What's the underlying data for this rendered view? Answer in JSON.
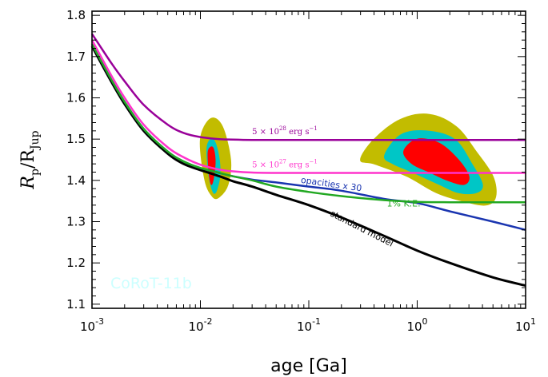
{
  "chart_data": {
    "type": "line",
    "title": "",
    "xlabel": "age [Ga]",
    "ylabel_main": "R",
    "ylabel_sub": "p",
    "ylabel_mid": "/R",
    "ylabel_sub2": "Jup",
    "xscale": "log",
    "xlim": [
      0.001,
      10
    ],
    "ylim": [
      1.09,
      1.81
    ],
    "x_tick_labels": [
      {
        "x": 0.001,
        "base": "10",
        "exp": "-3"
      },
      {
        "x": 0.01,
        "base": "10",
        "exp": "-2"
      },
      {
        "x": 0.1,
        "base": "10",
        "exp": "-1"
      },
      {
        "x": 1,
        "base": "10",
        "exp": "0"
      },
      {
        "x": 10,
        "base": "10",
        "exp": "1"
      }
    ],
    "y_ticks": [
      1.1,
      1.2,
      1.3,
      1.4,
      1.5,
      1.6,
      1.7,
      1.8
    ],
    "y_tick_labels": [
      "1.1",
      "1.2",
      "1.3",
      "1.4",
      "1.5",
      "1.6",
      "1.7",
      "1.8"
    ],
    "watermark": "CoRoT-11b",
    "series": [
      {
        "key": "std",
        "color": "#000000",
        "x": [
          0.001,
          0.0015,
          0.002,
          0.003,
          0.005,
          0.007,
          0.01,
          0.015,
          0.02,
          0.03,
          0.05,
          0.1,
          0.2,
          0.5,
          1,
          2,
          5,
          10
        ],
        "y": [
          1.725,
          1.64,
          1.585,
          1.52,
          1.465,
          1.44,
          1.425,
          1.41,
          1.398,
          1.385,
          1.365,
          1.34,
          1.31,
          1.265,
          1.23,
          1.2,
          1.165,
          1.145
        ]
      },
      {
        "key": "opac",
        "color": "#1a35b0",
        "x": [
          0.001,
          0.0015,
          0.002,
          0.003,
          0.005,
          0.007,
          0.01,
          0.015,
          0.02,
          0.03,
          0.05,
          0.1,
          0.2,
          0.5,
          1,
          2,
          5,
          10
        ],
        "y": [
          1.73,
          1.645,
          1.59,
          1.525,
          1.47,
          1.446,
          1.43,
          1.418,
          1.41,
          1.402,
          1.395,
          1.385,
          1.375,
          1.355,
          1.345,
          1.325,
          1.3,
          1.28
        ]
      },
      {
        "key": "ke",
        "color": "#22a822",
        "x": [
          0.001,
          0.0015,
          0.002,
          0.003,
          0.005,
          0.007,
          0.01,
          0.015,
          0.02,
          0.03,
          0.05,
          0.1,
          0.2,
          0.5,
          1,
          2,
          5,
          10
        ],
        "y": [
          1.73,
          1.645,
          1.59,
          1.525,
          1.47,
          1.446,
          1.43,
          1.418,
          1.41,
          1.4,
          1.385,
          1.372,
          1.362,
          1.352,
          1.348,
          1.347,
          1.347,
          1.347
        ]
      },
      {
        "key": "e27",
        "color": "#ff33cc",
        "x": [
          0.001,
          0.0015,
          0.002,
          0.003,
          0.005,
          0.007,
          0.01,
          0.015,
          0.02,
          0.03,
          0.05,
          0.1,
          0.2,
          0.5,
          1,
          2,
          5,
          10
        ],
        "y": [
          1.74,
          1.655,
          1.6,
          1.535,
          1.48,
          1.456,
          1.438,
          1.426,
          1.422,
          1.419,
          1.418,
          1.418,
          1.418,
          1.418,
          1.418,
          1.418,
          1.418,
          1.418
        ]
      },
      {
        "key": "e28",
        "color": "#990099",
        "x": [
          0.001,
          0.0015,
          0.002,
          0.003,
          0.005,
          0.007,
          0.01,
          0.015,
          0.02,
          0.03,
          0.05,
          0.1,
          0.2,
          0.5,
          1,
          2,
          5,
          10
        ],
        "y": [
          1.755,
          1.685,
          1.64,
          1.583,
          1.535,
          1.515,
          1.505,
          1.5,
          1.499,
          1.498,
          1.498,
          1.498,
          1.498,
          1.498,
          1.498,
          1.498,
          1.498,
          1.498
        ]
      }
    ],
    "line_labels": [
      {
        "key": "e28",
        "mant": "5",
        "times": "×",
        "base": "10",
        "exp": "28",
        "unit": "erg s",
        "uexp": "−1",
        "color": "#990099",
        "x": 0.03,
        "y": 1.512
      },
      {
        "key": "e27",
        "mant": "5",
        "times": "×",
        "base": "10",
        "exp": "27",
        "unit": "erg s",
        "uexp": "−1",
        "color": "#ff33cc",
        "x": 0.03,
        "y": 1.432
      },
      {
        "key": "opac",
        "text": "opacities x 30",
        "color": "#1a35b0",
        "x": 0.16,
        "y": 1.384,
        "rot": 8
      },
      {
        "key": "ke",
        "text": "1% K.E.",
        "color": "#22a822",
        "x": 0.75,
        "y": 1.337,
        "rot": 0
      },
      {
        "key": "std",
        "text": "standard model",
        "color": "#000000",
        "x": 0.3,
        "y": 1.277,
        "rot": 27
      }
    ],
    "regions": [
      {
        "name": "outer",
        "color": "#c2bc00",
        "blobs": [
          {
            "x": [
              0.01,
              0.0125,
              0.016,
              0.019,
              0.018,
              0.015,
              0.013,
              0.011
            ],
            "y": [
              1.5,
              1.55,
              1.53,
              1.45,
              1.39,
              1.36,
              1.36,
              1.4
            ]
          },
          {
            "x": [
              0.3,
              0.4,
              0.7,
              1.3,
              2.3,
              3.5,
              5.0,
              5.3,
              4.3,
              2.6,
              1.5,
              0.8,
              0.4
            ],
            "y": [
              1.45,
              1.5,
              1.548,
              1.56,
              1.53,
              1.47,
              1.41,
              1.36,
              1.34,
              1.35,
              1.37,
              1.41,
              1.44
            ]
          }
        ]
      },
      {
        "name": "middle",
        "color": "#00c6c6",
        "blobs": [
          {
            "x": [
              0.0115,
              0.013,
              0.0145,
              0.0152,
              0.0143,
              0.0132,
              0.012
            ],
            "y": [
              1.48,
              1.5,
              1.47,
              1.42,
              1.38,
              1.37,
              1.41
            ]
          },
          {
            "x": [
              0.5,
              0.7,
              1.2,
              2.2,
              3.2,
              4.0,
              3.5,
              2.4,
              1.6,
              0.9,
              0.6
            ],
            "y": [
              1.46,
              1.51,
              1.52,
              1.5,
              1.44,
              1.39,
              1.37,
              1.37,
              1.39,
              1.42,
              1.44
            ]
          }
        ]
      },
      {
        "name": "inner",
        "color": "#ff0000",
        "blobs": [
          {
            "x": [
              0.0118,
              0.013,
              0.0137,
              0.0133,
              0.0126,
              0.012
            ],
            "y": [
              1.47,
              1.48,
              1.45,
              1.41,
              1.39,
              1.42
            ]
          },
          {
            "x": [
              0.75,
              1.0,
              1.6,
              2.4,
              3.0,
              2.7,
              1.9,
              1.3,
              0.9
            ],
            "y": [
              1.47,
              1.5,
              1.49,
              1.45,
              1.41,
              1.39,
              1.4,
              1.42,
              1.44
            ]
          }
        ]
      }
    ]
  }
}
